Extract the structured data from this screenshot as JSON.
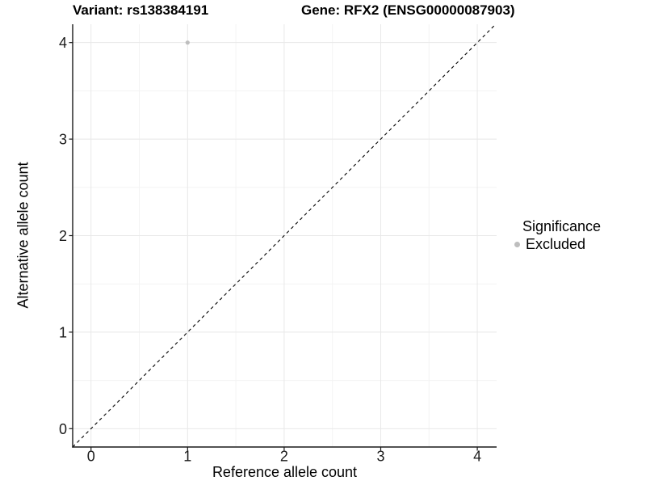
{
  "chart_data": {
    "type": "scatter",
    "titles": {
      "variant": "Variant: rs138384191",
      "gene": "Gene: RFX2 (ENSG00000087903)"
    },
    "xlabel": "Reference allele count",
    "ylabel": "Alternative allele count",
    "xlim": [
      -0.19,
      4.2
    ],
    "ylim": [
      -0.19,
      4.19
    ],
    "xticks": [
      0,
      1,
      2,
      3,
      4
    ],
    "yticks": [
      0,
      1,
      2,
      3,
      4
    ],
    "grid": {
      "major": true,
      "minor": true
    },
    "series": [
      {
        "name": "Excluded",
        "color": "#bebebe",
        "size": 2.6,
        "points": [
          [
            1,
            4
          ]
        ]
      }
    ],
    "reference_line": {
      "kind": "identity y = x",
      "style": "dashed",
      "color": "#000000"
    },
    "legend": {
      "position": "right",
      "title": "Significance",
      "items": [
        {
          "label": "Excluded",
          "color": "#bebebe",
          "marker": "circle"
        }
      ]
    },
    "colors": {
      "background": "#ffffff",
      "grid_major": "#e8e8e8",
      "grid_minor": "#f3f3f3",
      "axis": "#1a1a1a",
      "text": "#000000"
    }
  }
}
